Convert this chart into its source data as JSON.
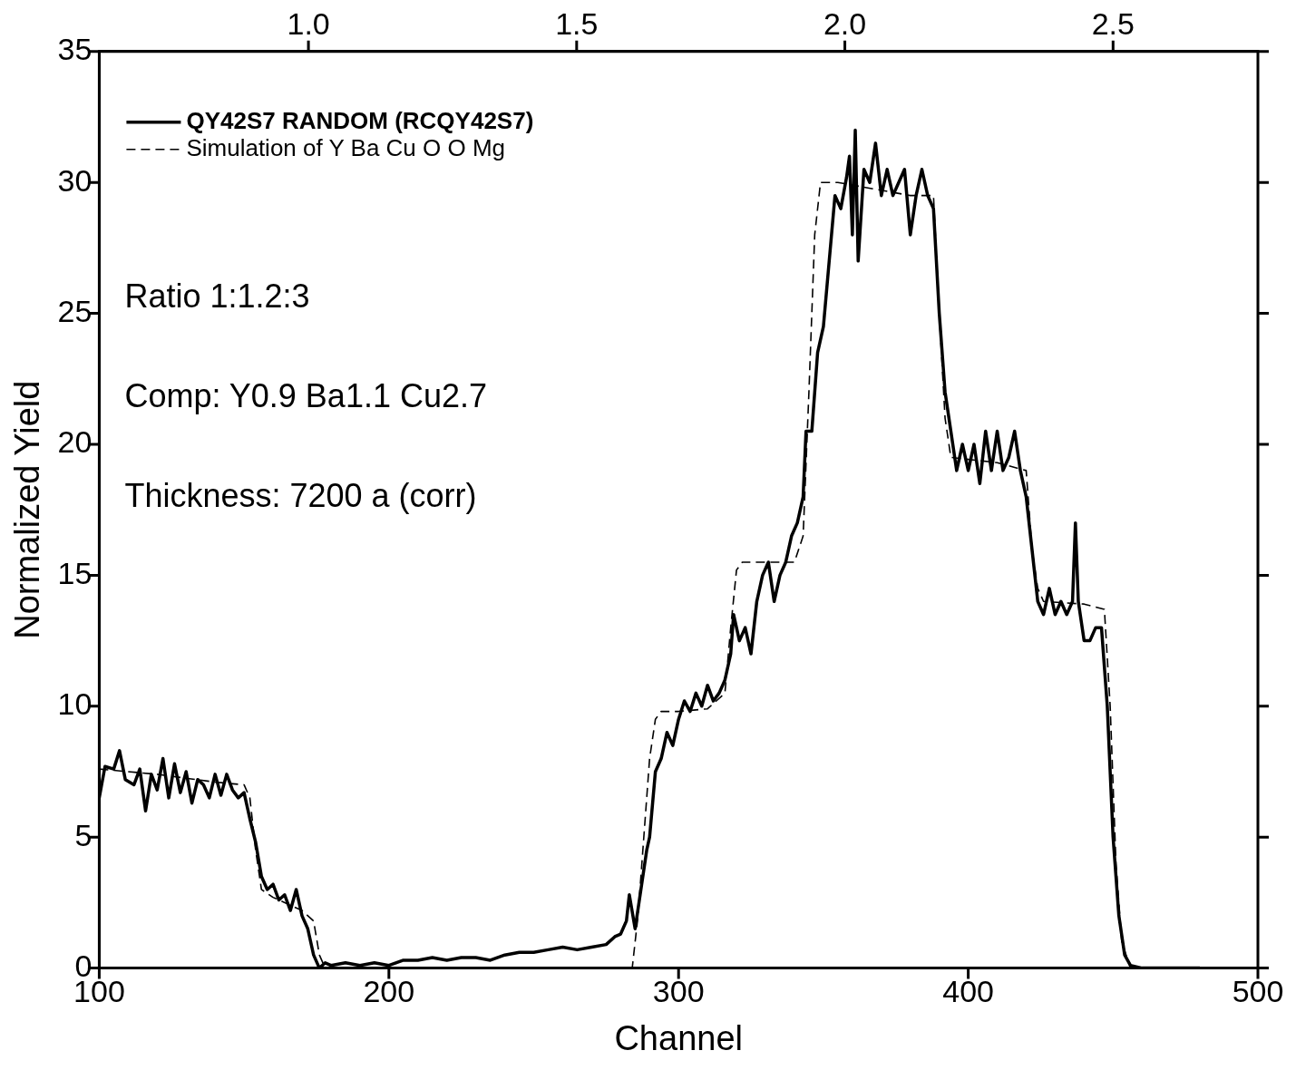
{
  "chart_data": {
    "type": "line",
    "xlabel": "Channel",
    "ylabel": "Normalized Yield",
    "xlim": [
      100,
      500
    ],
    "xticks": [
      100,
      200,
      300,
      400,
      500
    ],
    "ylim": [
      0,
      35
    ],
    "yticks": [
      0,
      5,
      10,
      15,
      20,
      25,
      30,
      35
    ],
    "x2lim": [
      0.61,
      2.77
    ],
    "x2ticks": [
      {
        "value": 1.0,
        "label": "1.0"
      },
      {
        "value": 1.5,
        "label": "1.5"
      },
      {
        "value": 2.0,
        "label": "2.0"
      },
      {
        "value": 2.5,
        "label": "2.5"
      }
    ],
    "grid": false,
    "legend": "top left",
    "marker": "none",
    "annotations": [
      "Ratio 1:1.2:3",
      "Comp: Y0.9 Ba1.1 Cu2.7",
      "Thickness: 7200 a (corr)"
    ],
    "series": [
      {
        "name": "QY42S7 RANDOM (RCQY42S7)",
        "color": "#000000",
        "line_style": "solid",
        "x": [
          100,
          102,
          105,
          107,
          109,
          112,
          114,
          116,
          118,
          120,
          122,
          124,
          126,
          128,
          130,
          132,
          134,
          136,
          138,
          140,
          142,
          144,
          146,
          148,
          150,
          152,
          154,
          156,
          158,
          160,
          162,
          164,
          166,
          168,
          170,
          172,
          174,
          176,
          178,
          180,
          185,
          190,
          195,
          200,
          205,
          210,
          215,
          220,
          225,
          230,
          235,
          240,
          245,
          250,
          255,
          260,
          265,
          270,
          275,
          278,
          280,
          282,
          283,
          285,
          287,
          289,
          290,
          292,
          294,
          296,
          298,
          300,
          302,
          304,
          306,
          308,
          310,
          312,
          314,
          316,
          318,
          319,
          321,
          323,
          325,
          327,
          329,
          331,
          333,
          335,
          337,
          339,
          341,
          343,
          344,
          346,
          348,
          350,
          352,
          354,
          356,
          358,
          359,
          360,
          361,
          362,
          364,
          366,
          368,
          370,
          372,
          374,
          376,
          378,
          380,
          382,
          384,
          386,
          388,
          390,
          392,
          394,
          396,
          398,
          400,
          402,
          404,
          406,
          408,
          410,
          412,
          414,
          416,
          418,
          420,
          422,
          424,
          426,
          428,
          430,
          432,
          434,
          436,
          437,
          438,
          440,
          442,
          444,
          446,
          448,
          450,
          452,
          454,
          456,
          460,
          470,
          480
        ],
        "values": [
          6.5,
          7.7,
          7.6,
          8.3,
          7.2,
          7.0,
          7.6,
          6.0,
          7.4,
          6.8,
          8.0,
          6.5,
          7.8,
          6.7,
          7.5,
          6.3,
          7.2,
          7.0,
          6.5,
          7.4,
          6.6,
          7.4,
          6.8,
          6.5,
          6.7,
          5.7,
          4.8,
          3.5,
          3.0,
          3.2,
          2.6,
          2.8,
          2.2,
          3.0,
          2.0,
          1.5,
          0.5,
          0.0,
          0.2,
          0.1,
          0.2,
          0.1,
          0.2,
          0.1,
          0.3,
          0.3,
          0.4,
          0.3,
          0.4,
          0.4,
          0.3,
          0.5,
          0.6,
          0.6,
          0.7,
          0.8,
          0.7,
          0.8,
          0.9,
          1.2,
          1.3,
          1.8,
          2.8,
          1.5,
          3.0,
          4.5,
          5.0,
          7.5,
          8.0,
          9.0,
          8.5,
          9.5,
          10.2,
          9.8,
          10.5,
          10.0,
          10.8,
          10.2,
          10.5,
          11.0,
          12.0,
          13.5,
          12.5,
          13.0,
          12.0,
          14.0,
          15.0,
          15.5,
          14.0,
          15.0,
          15.5,
          16.5,
          17.0,
          18.0,
          20.5,
          20.5,
          23.5,
          24.5,
          27.0,
          29.5,
          29.0,
          30.2,
          31.0,
          28.0,
          32.0,
          27.0,
          30.5,
          30.0,
          31.5,
          29.5,
          30.5,
          29.5,
          30.0,
          30.5,
          28.0,
          29.5,
          30.5,
          29.5,
          29.0,
          25.0,
          22.0,
          20.5,
          19.0,
          20.0,
          19.0,
          20.0,
          18.5,
          20.5,
          19.0,
          20.5,
          19.0,
          19.5,
          20.5,
          19.0,
          18.0,
          16.0,
          14.0,
          13.5,
          14.5,
          13.5,
          14.0,
          13.5,
          14.0,
          17.0,
          14.0,
          12.5,
          12.5,
          13.0,
          13.0,
          10.0,
          5.0,
          2.0,
          0.5,
          0.1,
          0.0,
          0.0,
          0.0
        ]
      },
      {
        "name": "Simulation of Y Ba Cu O O Mg",
        "color": "#000000",
        "line_style": "dashed",
        "x": [
          100,
          120,
          140,
          150,
          152,
          154,
          156,
          160,
          170,
          172,
          174,
          176,
          178,
          280,
          284,
          286,
          288,
          290,
          292,
          294,
          300,
          310,
          316,
          318,
          320,
          322,
          340,
          343,
          345,
          347,
          349,
          355,
          380,
          388,
          390,
          392,
          394,
          410,
          420,
          422,
          424,
          426,
          440,
          447,
          449,
          451,
          453,
          456,
          500
        ],
        "values": [
          7.6,
          7.4,
          7.1,
          7.0,
          6.5,
          4.5,
          3.0,
          2.7,
          2.2,
          2.0,
          1.8,
          0.5,
          0,
          0,
          0,
          2,
          5,
          8,
          9.5,
          9.8,
          9.8,
          9.9,
          10.5,
          13,
          15.2,
          15.5,
          15.5,
          16.5,
          22,
          28,
          30,
          30,
          29.5,
          29.5,
          25,
          21,
          19.5,
          19.3,
          19,
          16,
          14.5,
          14,
          13.9,
          13.7,
          10,
          4,
          1,
          0,
          0
        ]
      }
    ]
  }
}
